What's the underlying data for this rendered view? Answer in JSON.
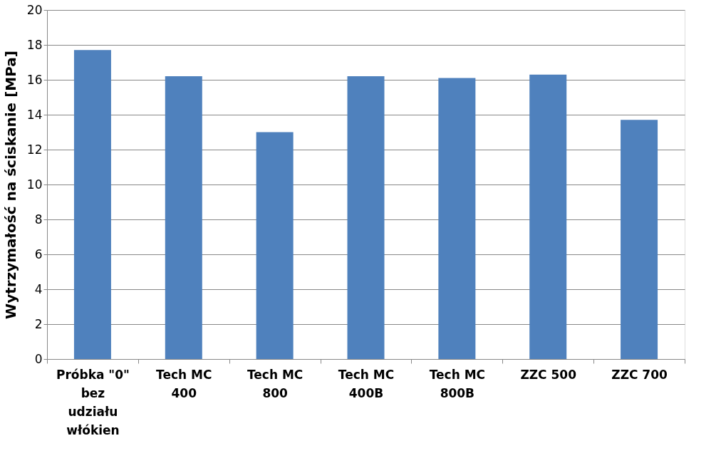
{
  "chart_data": {
    "type": "bar",
    "ylabel": "Wytrzymałość na ściskanie [MPa]",
    "categories": [
      "Próbka \"0\" bez udziału włókien",
      "Tech MC 400",
      "Tech MC 800",
      "Tech MC 400B",
      "Tech MC 800B",
      "ZZC 500",
      "ZZC 700"
    ],
    "values": [
      17.7,
      16.2,
      13.0,
      16.2,
      16.1,
      16.3,
      13.7
    ],
    "color": "#4f81bd",
    "ylim": [
      0,
      20
    ],
    "yticks": [
      0,
      2,
      4,
      6,
      8,
      10,
      12,
      14,
      16,
      18,
      20
    ],
    "grid": "y"
  }
}
